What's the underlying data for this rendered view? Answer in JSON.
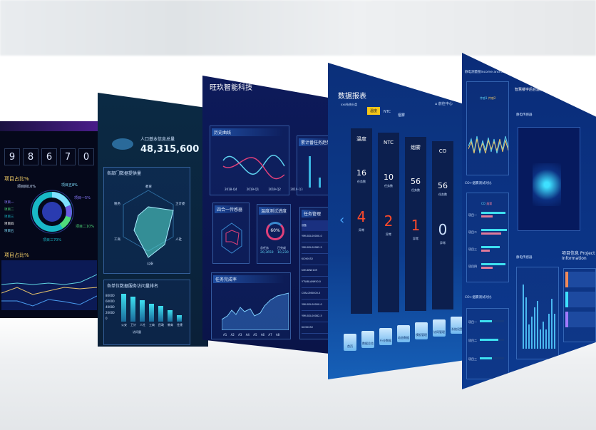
{
  "screen1": {
    "counter_digits": [
      "9",
      "8",
      "6",
      "7",
      "0"
    ],
    "pie_title": "项目占比%",
    "pie_labels": [
      "项目四10%",
      "项目五8%",
      "项目一5%",
      "项目二10%",
      "项目三70%"
    ],
    "legend": [
      "项目一",
      "项目二",
      "项目三",
      "项目四",
      "项目五"
    ],
    "line_title": "项目占比%"
  },
  "screen2": {
    "population_label": "人口基本信息总量",
    "population_value": "48,315,600",
    "radar_title": "各部门数据提供量",
    "radar_axes": [
      "教育",
      "卫计委",
      "人社",
      "公安",
      "工商",
      "税务"
    ],
    "bar_title": "各单位数据服务访问量排名",
    "bar_yticks": [
      "80000",
      "60000",
      "40000",
      "20000",
      "0"
    ],
    "bar_categories": [
      "公安",
      "卫计",
      "人社",
      "工商",
      "民政",
      "教育",
      "住建"
    ],
    "bar_values": [
      78000,
      70000,
      60000,
      50000,
      44000,
      32000,
      18000
    ],
    "bar_legend": "访问量"
  },
  "screen3": {
    "title": "旺玖智能科技",
    "history_title": "历史曲线",
    "history_yticks": [
      "2000",
      "1500",
      "1000",
      "500",
      "0"
    ],
    "history_xticks": [
      "2018-Q4",
      "2019-Q1",
      "2019-Q2",
      "2019-Q3"
    ],
    "stats_title": "累计番任务趋势",
    "stats_yticks": [
      "400",
      "300",
      "200",
      "100",
      "0"
    ],
    "radar_title": "四合一传感器",
    "radar_axes": [
      "A",
      "B",
      "C",
      "D",
      "E",
      "F"
    ],
    "gauge_title": "温度测试进度",
    "gauge_value": "60%",
    "gauge_a_label": "总任务",
    "gauge_a_value": "20,3659",
    "gauge_b_label": "已完成",
    "gauge_b_value": "10,230",
    "task_title": "任务管理",
    "task_header": "设备",
    "task_rows": [
      "YMU02L00000-0",
      "YMU02L00082-5",
      "KCH0052",
      "NHUDN0109",
      "YTW8LAN950.0",
      "CFALCM0000-5",
      "YMU02L00000-0",
      "YMU02L00082-5",
      "KCH0052"
    ],
    "completion_title": "任务完成率",
    "completion_yticks": [
      "100",
      "80",
      "60",
      "40",
      "20",
      "0"
    ],
    "completion_xticks": [
      "A1",
      "A2",
      "A3",
      "A4",
      "A5",
      "A6",
      "A7",
      "A8"
    ]
  },
  "screen4": {
    "title": "数据报表",
    "subtitle": "xxx系统分类",
    "tabs": [
      "温度",
      "NTC",
      "烟雾"
    ],
    "home_label": "前往中心",
    "columns": [
      {
        "name": "温度",
        "count": "16",
        "count_label": "任务数",
        "alarm": "4",
        "alarm_label": "异常"
      },
      {
        "name": "NTC",
        "count": "10",
        "count_label": "任务数",
        "alarm": "2",
        "alarm_label": "异常"
      },
      {
        "name": "烟雾",
        "count": "56",
        "count_label": "任务数",
        "alarm": "1",
        "alarm_label": "异常"
      },
      {
        "name": "CO",
        "count": "56",
        "count_label": "任务数",
        "alarm": "0",
        "alarm_label": "异常"
      }
    ],
    "nav": [
      "首页",
      "数据总览",
      "行业数据",
      "动态数据",
      "模板管理",
      "协同管理",
      "系统设置"
    ],
    "accent": "#f5c518",
    "alarm_color": "#ff4a2a"
  },
  "screen5": {
    "chart_title": "静电测量图income and output value",
    "legend": [
      "传感1",
      "传感2"
    ],
    "header": "智慧楼宇后台监控系统",
    "map_title": "静电传感器",
    "compare_title": "CO+烟雾测试对比",
    "compare_legend": [
      "CO",
      "烟雾"
    ],
    "compare_rows": [
      "项目一",
      "项目二",
      "项目三",
      "项目四"
    ],
    "progress_title": "CO+烟雾测试对比",
    "progress_rows": [
      "项目一",
      "项目二",
      "项目三"
    ],
    "progress_values": [
      50,
      75,
      50
    ],
    "bar_title": "静电传感器",
    "bar_yticks": [
      "40",
      "30",
      "20",
      "10",
      "0"
    ],
    "bar_values": [
      40,
      32,
      15,
      20,
      26,
      30,
      12,
      17,
      12,
      22,
      31,
      22
    ],
    "info_title": "项目信息 Project Information"
  }
}
